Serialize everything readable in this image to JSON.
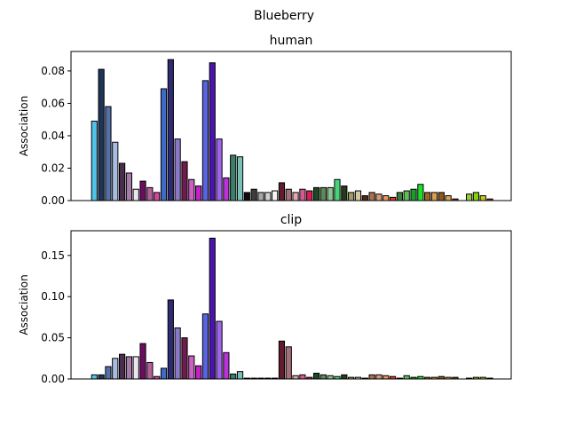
{
  "figure_title": "Blueberry",
  "chart_data": [
    {
      "type": "bar",
      "title": "human",
      "xlabel": "",
      "ylabel": "Association",
      "ylim": [
        0,
        0.092
      ],
      "yticks": [
        0.0,
        0.02,
        0.04,
        0.06,
        0.08
      ],
      "ytick_labels": [
        "0.00",
        "0.02",
        "0.04",
        "0.06",
        "0.08"
      ],
      "values": [
        0.049,
        0.081,
        0.058,
        0.036,
        0.023,
        0.017,
        0.007,
        0.012,
        0.008,
        0.005,
        0.069,
        0.087,
        0.038,
        0.024,
        0.013,
        0.009,
        0.074,
        0.085,
        0.038,
        0.014,
        0.028,
        0.027,
        0.005,
        0.007,
        0.005,
        0.005,
        0.006,
        0.011,
        0.007,
        0.005,
        0.007,
        0.006,
        0.008,
        0.008,
        0.008,
        0.013,
        0.009,
        0.005,
        0.006,
        0.003,
        0.005,
        0.004,
        0.003,
        0.002,
        0.005,
        0.006,
        0.007,
        0.01,
        0.005,
        0.005,
        0.005,
        0.003,
        0.001,
        0.0,
        0.004,
        0.005,
        0.003,
        0.001
      ]
    },
    {
      "type": "bar",
      "title": "clip",
      "xlabel": "",
      "ylabel": "Association",
      "ylim": [
        0,
        0.18
      ],
      "yticks": [
        0.0,
        0.05,
        0.1,
        0.15
      ],
      "ytick_labels": [
        "0.00",
        "0.05",
        "0.10",
        "0.15"
      ],
      "values": [
        0.005,
        0.005,
        0.015,
        0.025,
        0.03,
        0.027,
        0.027,
        0.043,
        0.02,
        0.003,
        0.013,
        0.096,
        0.062,
        0.05,
        0.028,
        0.016,
        0.079,
        0.171,
        0.07,
        0.032,
        0.006,
        0.009,
        0.001,
        0.001,
        0.001,
        0.001,
        0.001,
        0.046,
        0.039,
        0.004,
        0.005,
        0.002,
        0.007,
        0.005,
        0.004,
        0.003,
        0.005,
        0.002,
        0.002,
        0.001,
        0.005,
        0.005,
        0.004,
        0.003,
        0.001,
        0.004,
        0.002,
        0.003,
        0.002,
        0.002,
        0.003,
        0.002,
        0.002,
        0.0,
        0.001,
        0.002,
        0.002,
        0.001
      ]
    }
  ],
  "bar_colors": [
    "#4fc3e8",
    "#1f3557",
    "#5470a8",
    "#a7bde0",
    "#4a2c4c",
    "#a67ba8",
    "#efe4f2",
    "#6e0b62",
    "#b65f9e",
    "#d4479c",
    "#3d6bc6",
    "#2e2a74",
    "#8a77c6",
    "#701b4e",
    "#cc5fc5",
    "#c520c8",
    "#5a63e0",
    "#4a14b0",
    "#a064ec",
    "#b833d8",
    "#3b7e6a",
    "#78c0b6",
    "#0d0d0d",
    "#3d3d3d",
    "#a8a8a8",
    "#d2d2d2",
    "#f5f5f5",
    "#611c2e",
    "#a56f78",
    "#e0a8b2",
    "#d35a8e",
    "#e01a54",
    "#1a4a24",
    "#5c8a5c",
    "#8cc48e",
    "#44d47a",
    "#253a1a",
    "#9e9c66",
    "#d6c7a0",
    "#4c2a10",
    "#a8724e",
    "#d99c72",
    "#e89860",
    "#e23c1c",
    "#3a7e3c",
    "#5fbe58",
    "#189c2a",
    "#1ce028",
    "#a06428",
    "#d89e4c",
    "#8c5a1e",
    "#e0a24a",
    "#7c4614",
    "#c8a040",
    "#9ac838",
    "#82d010",
    "#c8c818",
    "#b04018"
  ]
}
